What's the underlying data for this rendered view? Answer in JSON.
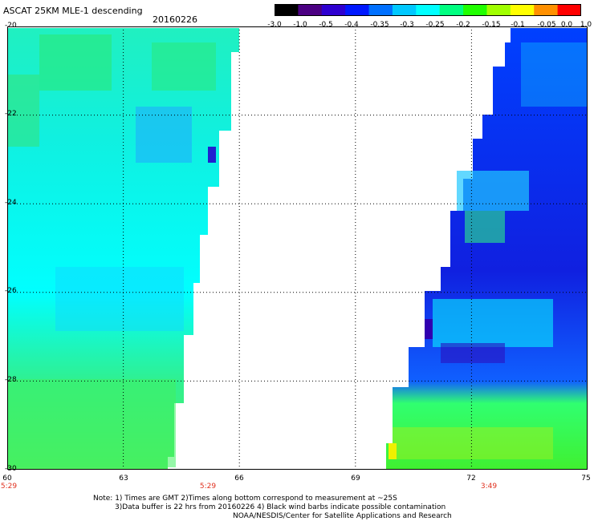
{
  "header": {
    "title": "ASCAT 25KM MLE-1 descending",
    "date": "20160226"
  },
  "colorbar": {
    "labels": [
      "-3.0",
      "-1.0",
      "-0.5",
      "-0.4",
      "-0.35",
      "-0.3",
      "-0.25",
      "-0.2",
      "-0.15",
      "-0.1",
      "-0.05",
      "0.0",
      "1.0"
    ],
    "colors": [
      "#000000",
      "#4b0082",
      "#2e00d0",
      "#0018ff",
      "#0070ff",
      "#00c8ff",
      "#00ffff",
      "#00ff80",
      "#20ff00",
      "#a0ff00",
      "#ffff00",
      "#ff9000",
      "#ff0000"
    ]
  },
  "axes": {
    "lat_labels": [
      "-20",
      "-22",
      "-24",
      "-26",
      "-28",
      "-30"
    ],
    "lon_labels": [
      "60",
      "63",
      "66",
      "69",
      "72",
      "75"
    ],
    "lat_range": [
      -30,
      -20
    ],
    "lon_range": [
      60,
      75
    ]
  },
  "swath_times": [
    "5:29",
    "5:29",
    "3:49"
  ],
  "notes": {
    "line1": "Note: 1) Times are GMT 2)Times along bottom correspond to measurement at ~25S",
    "line2": "3)Data buffer is 22 hrs from 20160226 4) Black wind barbs indicate possible contamination",
    "line3": "NOAA/NESDIS/Center for Satellite Applications and Research"
  }
}
